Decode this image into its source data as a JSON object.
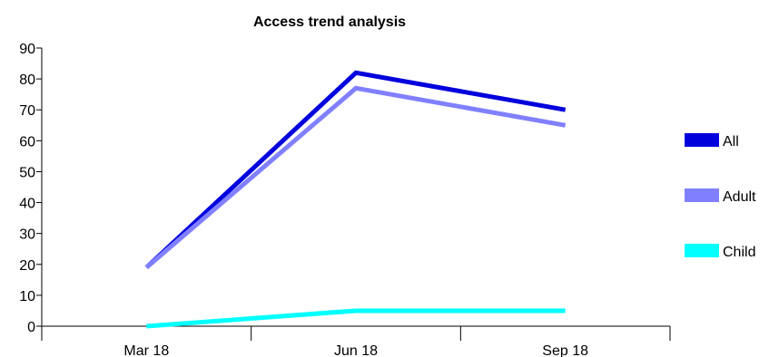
{
  "chart_data": {
    "type": "line",
    "title": "Access trend analysis",
    "xlabel": "",
    "ylabel": "",
    "categories": [
      "Mar 18",
      "Jun 18",
      "Sep 18"
    ],
    "ylim": [
      0,
      90
    ],
    "yticks": [
      0,
      10,
      20,
      30,
      40,
      50,
      60,
      70,
      80,
      90
    ],
    "grid": false,
    "legend_position": "right",
    "series": [
      {
        "name": "All",
        "color": "#0000dd",
        "values": [
          19,
          82,
          70
        ]
      },
      {
        "name": "Adult",
        "color": "#8080ff",
        "values": [
          19,
          77,
          65
        ]
      },
      {
        "name": "Child",
        "color": "#00ffff",
        "values": [
          0,
          5,
          5
        ]
      }
    ]
  }
}
